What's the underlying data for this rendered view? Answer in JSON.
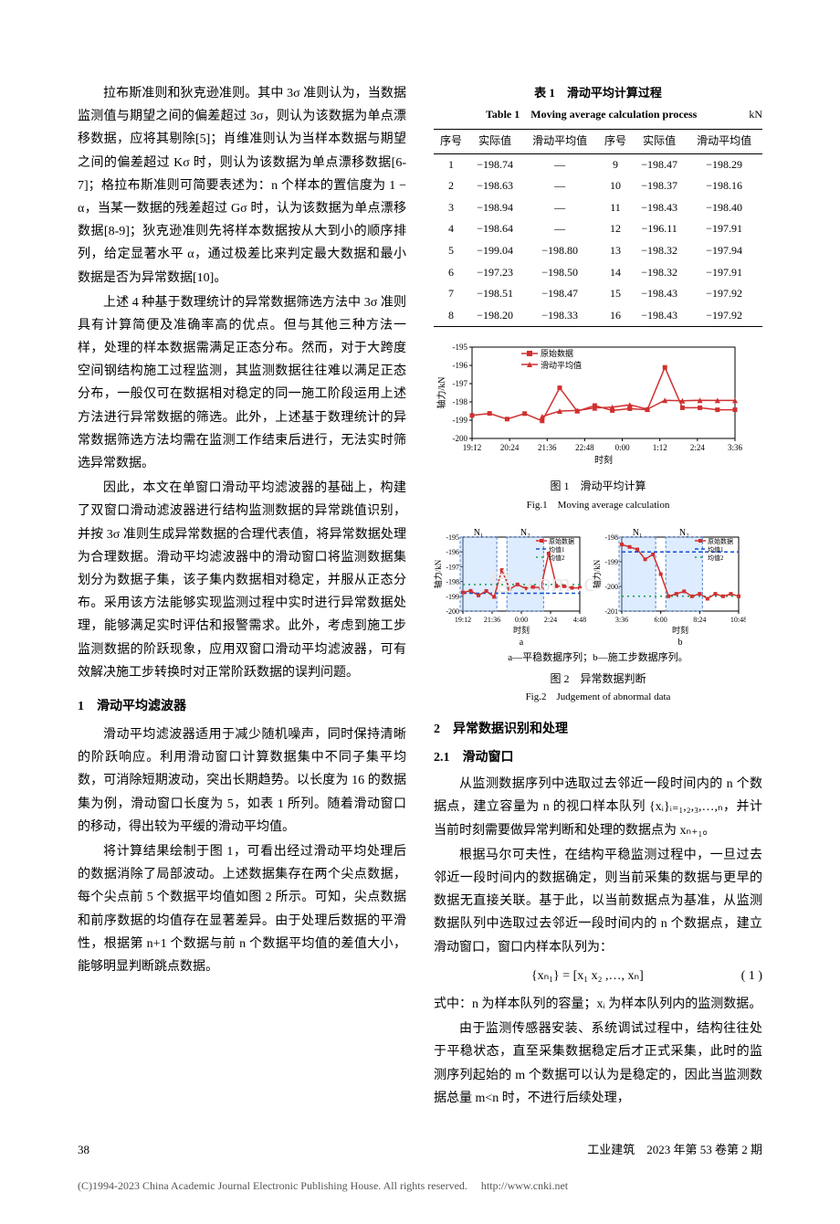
{
  "left": {
    "para1": "拉布斯准则和狄克逊准则。其中 3σ 准则认为，当数据监测值与期望之间的偏差超过 3σ，则认为该数据为单点漂移数据，应将其剔除[5]；肖维准则认为当样本数据与期望之间的偏差超过 Kσ 时，则认为该数据为单点漂移数据[6-7]；格拉布斯准则可简要表述为：n 个样本的置信度为 1 − α，当某一数据的残差超过 Gσ 时，认为该数据为单点漂移数据[8-9]；狄克逊准则先将样本数据按从大到小的顺序排列，给定显著水平 α，通过极差比来判定最大数据和最小数据是否为异常数据[10]。",
    "para2": "上述 4 种基于数理统计的异常数据筛选方法中 3σ 准则具有计算简便及准确率高的优点。但与其他三种方法一样，处理的样本数据需满足正态分布。然而，对于大跨度空间钢结构施工过程监测，其监测数据往往难以满足正态分布，一般仅可在数据相对稳定的同一施工阶段运用上述方法进行异常数据的筛选。此外，上述基于数理统计的异常数据筛选方法均需在监测工作结束后进行，无法实时筛选异常数据。",
    "para3": "因此，本文在单窗口滑动平均滤波器的基础上，构建了双窗口滑动滤波器进行结构监测数据的异常跳值识别，并按 3σ 准则生成异常数据的合理代表值，将异常数据处理为合理数据。滑动平均滤波器中的滑动窗口将监测数据集划分为数据子集，该子集内数据相对稳定，并服从正态分布。采用该方法能够实现监测过程中实时进行异常数据处理，能够满足实时评估和报警需求。此外，考虑到施工步监测数据的阶跃现象，应用双窗口滑动平均滤波器，可有效解决施工步转换时对正常阶跃数据的误判问题。",
    "sec1_title": "1　滑动平均滤波器",
    "para4": "滑动平均滤波器适用于减少随机噪声，同时保持清晰的阶跃响应。利用滑动窗口计算数据集中不同子集平均数，可消除短期波动，突出长期趋势。以长度为 16 的数据集为例，滑动窗口长度为 5，如表 1 所列。随着滑动窗口的移动，得出较为平缓的滑动平均值。",
    "para5": "将计算结果绘制于图 1，可看出经过滑动平均处理后的数据消除了局部波动。上述数据集存在两个尖点数据，每个尖点前 5 个数据平均值如图 2 所示。可知，尖点数据和前序数据的均值存在显著差异。由于处理后数据的平滑性，根据第 n+1 个数据与前 n 个数据平均值的差值大小，能够明显判断跳点数据。"
  },
  "table1": {
    "title_cn": "表 1　滑动平均计算过程",
    "title_en": "Table 1　Moving average calculation process",
    "unit": "kN",
    "headers": [
      "序号",
      "实际值",
      "滑动平均值",
      "序号",
      "实际值",
      "滑动平均值"
    ],
    "rows": [
      [
        "1",
        "−198.74",
        "—",
        "9",
        "−198.47",
        "−198.29"
      ],
      [
        "2",
        "−198.63",
        "—",
        "10",
        "−198.37",
        "−198.16"
      ],
      [
        "3",
        "−198.94",
        "—",
        "11",
        "−198.43",
        "−198.40"
      ],
      [
        "4",
        "−198.64",
        "—",
        "12",
        "−196.11",
        "−197.91"
      ],
      [
        "5",
        "−199.04",
        "−198.80",
        "13",
        "−198.32",
        "−197.94"
      ],
      [
        "6",
        "−197.23",
        "−198.50",
        "14",
        "−198.32",
        "−197.91"
      ],
      [
        "7",
        "−198.51",
        "−198.47",
        "15",
        "−198.43",
        "−197.92"
      ],
      [
        "8",
        "−198.20",
        "−198.33",
        "16",
        "−198.43",
        "−197.92"
      ]
    ]
  },
  "fig1": {
    "caption_cn": "图 1　滑动平均计算",
    "caption_en": "Fig.1　Moving average calculation",
    "ylabel": "轴力/kN",
    "xlabel": "时刻",
    "yticks": [
      "-195",
      "-196",
      "-197",
      "-198",
      "-199",
      "-200"
    ],
    "xticks": [
      "19:12",
      "20:24",
      "21:36",
      "22:48",
      "0:00",
      "1:12",
      "2:24",
      "3:36"
    ],
    "legend": [
      "原始数据",
      "滑动平均值"
    ],
    "color_raw": "#d03030",
    "color_avg": "#d03030",
    "raw_y": [
      -198.74,
      -198.63,
      -198.94,
      -198.64,
      -199.04,
      -197.23,
      -198.51,
      -198.2,
      -198.47,
      -198.37,
      -198.43,
      -196.11,
      -198.32,
      -198.32,
      -198.43,
      -198.43
    ],
    "avg_y": [
      null,
      null,
      null,
      null,
      -198.8,
      -198.5,
      -198.47,
      -198.33,
      -198.29,
      -198.16,
      -198.4,
      -197.91,
      -197.94,
      -197.91,
      -197.92,
      -197.92
    ]
  },
  "fig2": {
    "note": "a—平稳数据序列；b—施工步数据序列。",
    "caption_cn": "图 2　异常数据判断",
    "caption_en": "Fig.2　Judgement of abnormal data",
    "ylabel": "轴力/kN",
    "xlabel": "时刻",
    "legend": [
      "原始数据",
      "均值1",
      "均值2"
    ],
    "color_raw": "#d03030",
    "color_m1": "#1050d0",
    "color_m2": "#10a050",
    "a": {
      "yticks": [
        "-195",
        "-196",
        "-197",
        "-198",
        "-199",
        "-200"
      ],
      "xticks": [
        "19:12",
        "21:36",
        "0:00",
        "2:24",
        "4:48"
      ],
      "n1_label": "N₁",
      "n2_label": "N₂",
      "raw_y": [
        -198.74,
        -198.63,
        -198.94,
        -198.64,
        -199.04,
        -197.23,
        -198.51,
        -198.2,
        -198.47,
        -198.37,
        -198.43,
        -196.11,
        -198.32,
        -198.32,
        -198.43,
        -198.43
      ],
      "m1": -198.8,
      "m2": -198.2,
      "box1": [
        0,
        4
      ],
      "box2": [
        6,
        10
      ]
    },
    "b": {
      "yticks": [
        "-198",
        "-199",
        "-200",
        "-201"
      ],
      "xticks": [
        "3:36",
        "6:00",
        "8:24",
        "10:48"
      ],
      "n1_label": "N₁",
      "n2_label": "N₂",
      "raw_y": [
        -198.3,
        -198.4,
        -198.5,
        -198.9,
        -198.7,
        -199.5,
        -200.4,
        -200.3,
        -200.2,
        -200.4,
        -200.3,
        -200.5,
        -200.3,
        -200.4,
        -200.3,
        -200.4
      ],
      "m1": -198.6,
      "m2": -200.4,
      "box1": [
        0,
        4
      ],
      "box2": [
        6,
        10
      ]
    }
  },
  "right": {
    "sec2_title": "2　异常数据识别和处理",
    "sec21_title": "2.1　滑动窗口",
    "para1": "从监测数据序列中选取过去邻近一段时间内的 n 个数据点，建立容量为 n 的视口样本队列 {xᵢ}ᵢ₌₁,₂,₃,…,ₙ，并计当前时刻需要做异常判断和处理的数据点为 xₙ₊₁。",
    "para2": "根据马尔可夫性，在结构平稳监测过程中，一旦过去邻近一段时间内的数据确定，则当前采集的数据与更早的数据无直接关联。基于此，以当前数据点为基准，从监测数据队列中选取过去邻近一段时间内的 n 个数据点，建立滑动窗口，窗口内样本队列为：",
    "eq1": "{xₙ₁} = [x₁  x₂ ,…, xₙ]",
    "eq1_num": "( 1 )",
    "para3": "式中：n 为样本队列的容量；xᵢ 为样本队列内的监测数据。",
    "para4": "由于监测传感器安装、系统调试过程中，结构往往处于平稳状态，直至采集数据稳定后才正式采集，此时的监测序列起始的 m 个数据可以认为是稳定的，因此当监测数据总量 m<n 时，不进行后续处理，"
  },
  "footer": {
    "page": "38",
    "journal": "工业建筑　2023 年第 53 卷第 2 期"
  },
  "copyright": {
    "text": "(C)1994-2023 China Academic Journal Electronic Publishing House. All rights reserved.",
    "url": "http://www.cnki.net"
  },
  "watermark": "信 .com .c"
}
